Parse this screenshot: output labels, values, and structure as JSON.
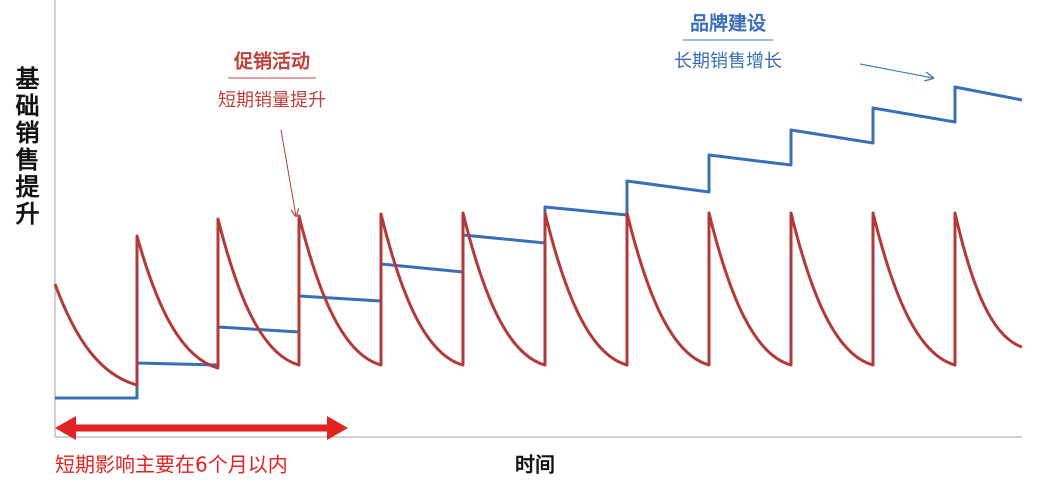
{
  "y_axis_label": "基础销售提升",
  "x_axis_label": "时间",
  "promotion": {
    "title": "促销活动",
    "subtitle": "短期销量提升"
  },
  "brand": {
    "title": "品牌建设",
    "subtitle": "长期销售增长"
  },
  "duration_note": "短期影响主要在6个月以内"
}
